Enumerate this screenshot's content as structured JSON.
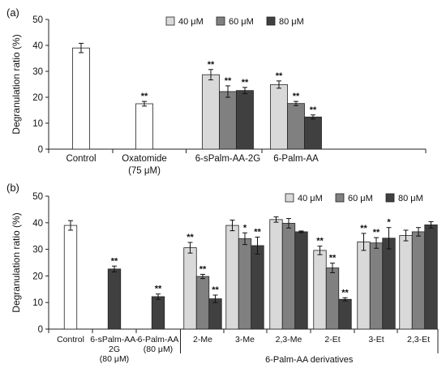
{
  "chart_data": [
    {
      "type": "bar",
      "panel_label": "(a)",
      "title": "",
      "ylabel": "Degranulation ratio (%)",
      "xlabel": "",
      "ylim": [
        0,
        50
      ],
      "yticks": [
        0,
        10,
        20,
        30,
        40,
        50
      ],
      "grid": false,
      "legend_position": "top-center",
      "legend": [
        {
          "name": "40 μM",
          "color": "#d9d9d9"
        },
        {
          "name": "60 μM",
          "color": "#808080"
        },
        {
          "name": "80 μM",
          "color": "#404040"
        }
      ],
      "groups": [
        {
          "label": "Control",
          "bars": [
            {
              "value": 39,
              "error": 1.8,
              "color": "#ffffff",
              "sig": ""
            }
          ]
        },
        {
          "label": "Oxatomide (75 μM)",
          "bars": [
            {
              "value": 17.5,
              "error": 0.9,
              "color": "#ffffff",
              "sig": "**"
            }
          ]
        },
        {
          "label": "6-sPalm-AA-2G",
          "bars": [
            {
              "value": 28.7,
              "error": 2.0,
              "color": "#d9d9d9",
              "sig": "**"
            },
            {
              "value": 22.2,
              "error": 2.2,
              "color": "#808080",
              "sig": "**"
            },
            {
              "value": 22.6,
              "error": 1.2,
              "color": "#404040",
              "sig": "**"
            }
          ]
        },
        {
          "label": "6-Palm-AA",
          "bars": [
            {
              "value": 24.9,
              "error": 1.4,
              "color": "#d9d9d9",
              "sig": "**"
            },
            {
              "value": 17.6,
              "error": 0.8,
              "color": "#808080",
              "sig": "**"
            },
            {
              "value": 12.4,
              "error": 0.8,
              "color": "#404040",
              "sig": "**"
            }
          ]
        }
      ]
    },
    {
      "type": "bar",
      "panel_label": "(b)",
      "title": "",
      "ylabel": "Degranulation ratio (%)",
      "xlabel": "6-Palm-AA derivatives",
      "ylim": [
        0,
        50
      ],
      "yticks": [
        0,
        10,
        20,
        30,
        40,
        50
      ],
      "grid": false,
      "legend_position": "top-right",
      "legend": [
        {
          "name": "40 μM",
          "color": "#d9d9d9"
        },
        {
          "name": "60 μM",
          "color": "#808080"
        },
        {
          "name": "80 μM",
          "color": "#404040"
        }
      ],
      "groups": [
        {
          "label": "Control",
          "bars": [
            {
              "value": 39,
              "error": 1.8,
              "color": "#ffffff",
              "sig": ""
            }
          ]
        },
        {
          "label": "6-sPalm-AA-2G (80 μM)",
          "bars": [
            {
              "value": 22.6,
              "error": 1.1,
              "color": "#404040",
              "sig": "**"
            }
          ]
        },
        {
          "label": "6-Palm-AA (80 μM)",
          "bars": [
            {
              "value": 12.2,
              "error": 1.0,
              "color": "#404040",
              "sig": "**"
            }
          ]
        },
        {
          "label": "2-Me",
          "bars": [
            {
              "value": 30.6,
              "error": 2.0,
              "color": "#d9d9d9",
              "sig": "**"
            },
            {
              "value": 19.8,
              "error": 0.8,
              "color": "#808080",
              "sig": "**"
            },
            {
              "value": 11.4,
              "error": 1.4,
              "color": "#404040",
              "sig": "**"
            }
          ]
        },
        {
          "label": "3-Me",
          "bars": [
            {
              "value": 39.0,
              "error": 2.0,
              "color": "#d9d9d9",
              "sig": ""
            },
            {
              "value": 34.0,
              "error": 2.2,
              "color": "#808080",
              "sig": "*"
            },
            {
              "value": 31.4,
              "error": 3.2,
              "color": "#404040",
              "sig": "**"
            }
          ]
        },
        {
          "label": "2,3-Me",
          "bars": [
            {
              "value": 41.2,
              "error": 1.0,
              "color": "#d9d9d9",
              "sig": ""
            },
            {
              "value": 39.8,
              "error": 1.8,
              "color": "#808080",
              "sig": ""
            },
            {
              "value": 36.6,
              "error": 0.3,
              "color": "#404040",
              "sig": ""
            }
          ]
        },
        {
          "label": "2-Et",
          "bars": [
            {
              "value": 29.6,
              "error": 1.6,
              "color": "#d9d9d9",
              "sig": "**"
            },
            {
              "value": 23.0,
              "error": 1.8,
              "color": "#808080",
              "sig": "**"
            },
            {
              "value": 11.2,
              "error": 0.6,
              "color": "#404040",
              "sig": "**"
            }
          ]
        },
        {
          "label": "3-Et",
          "bars": [
            {
              "value": 32.8,
              "error": 3.2,
              "color": "#d9d9d9",
              "sig": "**"
            },
            {
              "value": 32.4,
              "error": 2.0,
              "color": "#808080",
              "sig": "**"
            },
            {
              "value": 34.2,
              "error": 4.0,
              "color": "#404040",
              "sig": "*"
            }
          ]
        },
        {
          "label": "2,3-Et",
          "bars": [
            {
              "value": 35.2,
              "error": 2.0,
              "color": "#d9d9d9",
              "sig": ""
            },
            {
              "value": 36.6,
              "error": 1.6,
              "color": "#808080",
              "sig": ""
            },
            {
              "value": 39.2,
              "error": 1.2,
              "color": "#404040",
              "sig": ""
            }
          ]
        }
      ]
    }
  ]
}
